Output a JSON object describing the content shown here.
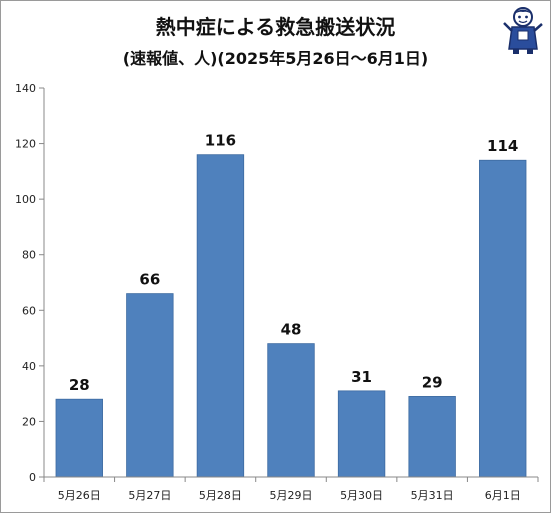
{
  "chart_data": {
    "type": "bar",
    "title": "熱中症による救急搬送状況",
    "subtitle": "(速報値、人)(2025年5月26日〜6月1日)",
    "categories": [
      "5月26日",
      "5月27日",
      "5月28日",
      "5月29日",
      "5月30日",
      "5月31日",
      "6月1日"
    ],
    "values": [
      28,
      66,
      116,
      48,
      31,
      29,
      114
    ],
    "data_labels": [
      "28",
      "66",
      "116",
      "48",
      "31",
      "29",
      "114"
    ],
    "yticks": [
      "0",
      "20",
      "40",
      "60",
      "80",
      "100",
      "120",
      "140"
    ],
    "ylim": [
      0,
      140
    ],
    "ystep": 20,
    "grid": false,
    "bar_color": "#4f81bd",
    "bar_edge_color": "#3d6aa0"
  },
  "mascot_icon": "mascot-character-icon"
}
